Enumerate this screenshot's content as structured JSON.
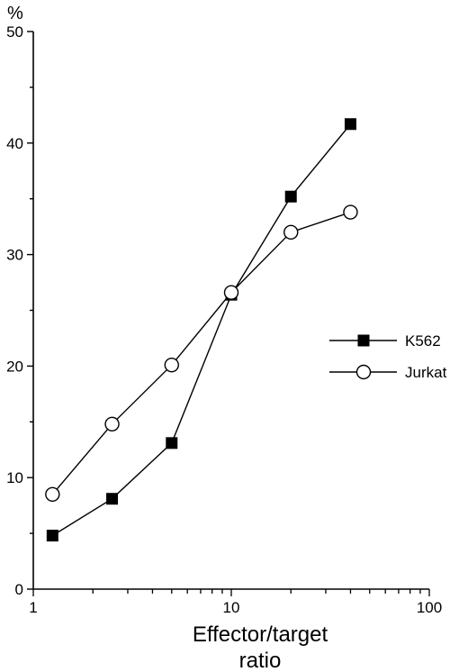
{
  "chart_data": {
    "type": "line",
    "title": "",
    "xlabel_lines": [
      "Effector/target",
      "ratio"
    ],
    "ylabel": "%",
    "x_scale": "log",
    "xlim": [
      1,
      100
    ],
    "ylim": [
      0,
      50
    ],
    "x_ticks": [
      1,
      10,
      100
    ],
    "x_tick_labels": [
      "1",
      "10",
      "100"
    ],
    "y_ticks": [
      0,
      10,
      20,
      30,
      40,
      50
    ],
    "y_tick_labels": [
      "0",
      "10",
      "20",
      "30",
      "40",
      "50"
    ],
    "grid": false,
    "legend_position": "right",
    "series": [
      {
        "name": "K562",
        "marker": "filled-square",
        "x": [
          1.25,
          2.5,
          5,
          10,
          20,
          40
        ],
        "y": [
          4.8,
          8.1,
          13.1,
          26.4,
          35.2,
          41.7
        ]
      },
      {
        "name": "Jurkat",
        "marker": "open-circle",
        "x": [
          1.25,
          2.5,
          5,
          10,
          20,
          40
        ],
        "y": [
          8.5,
          14.8,
          20.1,
          26.6,
          32.0,
          33.8
        ]
      }
    ]
  }
}
